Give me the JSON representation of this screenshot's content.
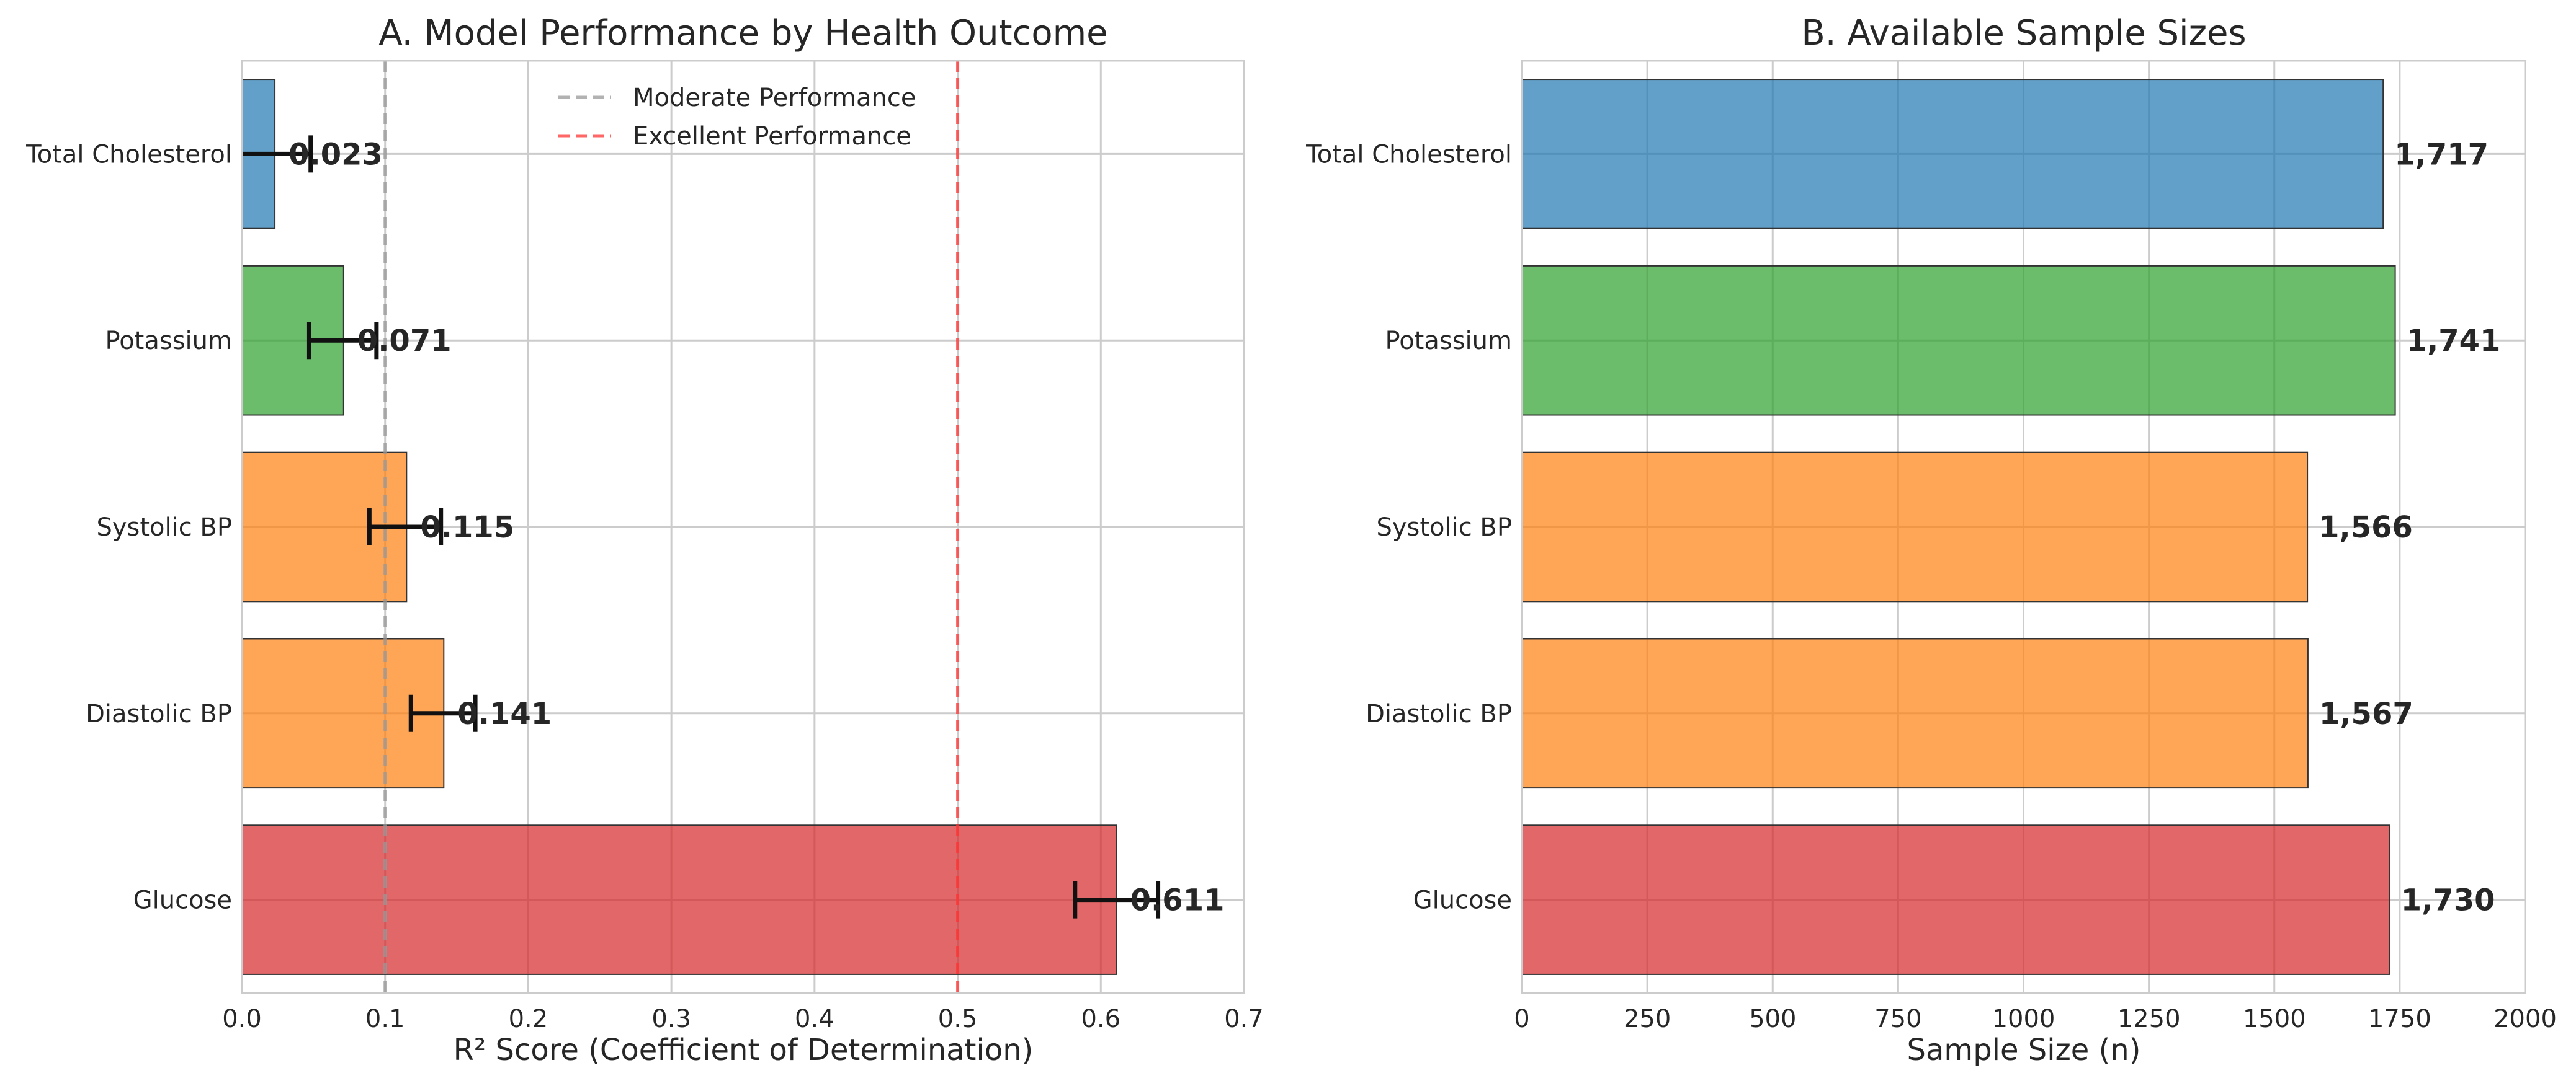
{
  "chart_data": [
    {
      "type": "bar",
      "orientation": "horizontal",
      "title": "A. Model Performance by Health Outcome",
      "xlabel": "R² Score (Coefficient of Determination)",
      "ylabel": "",
      "xlim": [
        0,
        0.7
      ],
      "xticks": [
        "0.0",
        "0.1",
        "0.2",
        "0.3",
        "0.4",
        "0.5",
        "0.6",
        "0.7"
      ],
      "grid": true,
      "categories": [
        "Glucose",
        "Diastolic BP",
        "Systolic BP",
        "Potassium",
        "Total Cholesterol"
      ],
      "values": [
        0.611,
        0.141,
        0.115,
        0.071,
        0.023
      ],
      "value_labels": [
        "0.611",
        "0.141",
        "0.115",
        "0.071",
        "0.023"
      ],
      "error_low": [
        0.582,
        0.118,
        0.089,
        0.047,
        0.0
      ],
      "error_high": [
        0.64,
        0.163,
        0.139,
        0.094,
        0.048
      ],
      "colors": [
        "#d62728",
        "#ff7f0e",
        "#ff7f0e",
        "#2ca02c",
        "#1f77b4"
      ],
      "reference_lines": [
        {
          "label": "Moderate Performance",
          "x": 0.1,
          "color": "#999999",
          "style": "dashed"
        },
        {
          "label": "Excellent Performance",
          "x": 0.5,
          "color": "#ff3333",
          "style": "dashed"
        }
      ],
      "legend_position": "top-center"
    },
    {
      "type": "bar",
      "orientation": "horizontal",
      "title": "B. Available Sample Sizes",
      "xlabel": "Sample Size (n)",
      "ylabel": "",
      "xlim": [
        0,
        2000
      ],
      "xticks": [
        "0",
        "250",
        "500",
        "750",
        "1000",
        "1250",
        "1500",
        "1750",
        "2000"
      ],
      "grid": true,
      "categories": [
        "Glucose",
        "Diastolic BP",
        "Systolic BP",
        "Potassium",
        "Total Cholesterol"
      ],
      "values": [
        1730,
        1567,
        1566,
        1741,
        1717
      ],
      "value_labels": [
        "1,730",
        "1,567",
        "1,566",
        "1,741",
        "1,717"
      ],
      "colors": [
        "#d62728",
        "#ff7f0e",
        "#ff7f0e",
        "#2ca02c",
        "#1f77b4"
      ]
    }
  ]
}
